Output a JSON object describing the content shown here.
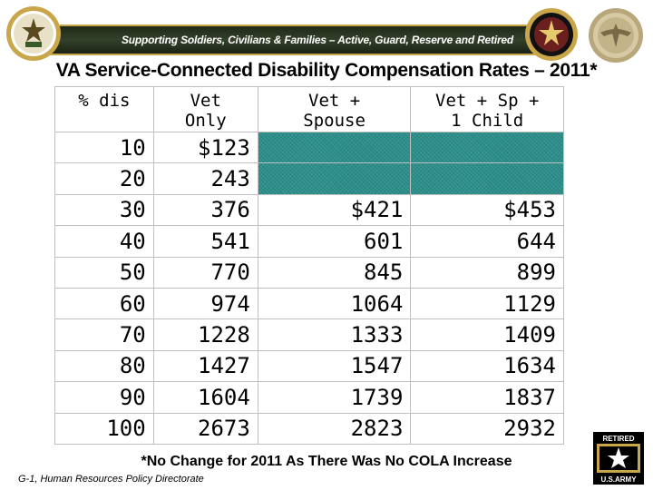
{
  "header": {
    "banner_text": "Supporting Soldiers, Civilians & Families – Active, Guard, Reserve and Retired",
    "seal_left_icon": "department-of-army-seal",
    "seal_right1_icon": "chief-of-staff-seal",
    "seal_right2_icon": "great-seal"
  },
  "title": "VA Service-Connected Disability Compensation Rates – 2011*",
  "table": {
    "headers": [
      "% dis",
      "Vet\nOnly",
      "Vet +\nSpouse",
      "Vet + Sp +\n1 Child"
    ],
    "rows": [
      [
        "10",
        "$123",
        "",
        ""
      ],
      [
        "20",
        "243",
        "",
        ""
      ],
      [
        "30",
        "376",
        "$421",
        "$453"
      ],
      [
        "40",
        "541",
        "601",
        "644"
      ],
      [
        "50",
        "770",
        "845",
        "899"
      ],
      [
        "60",
        "974",
        "1064",
        "1129"
      ],
      [
        "70",
        "1228",
        "1333",
        "1409"
      ],
      [
        "80",
        "1427",
        "1547",
        "1634"
      ],
      [
        "90",
        "1604",
        "1739",
        "1837"
      ],
      [
        "100",
        "2673",
        "2823",
        "2932"
      ]
    ],
    "na_fill_color": "#2a8f8a"
  },
  "footnote": "*No Change for 2011 As There Was No COLA Increase",
  "footer_left": "G-1, Human Resources Policy Directorate",
  "army_logo": {
    "top_text": "RETIRED",
    "bottom_text": "U.S.ARMY",
    "icon": "army-star-icon"
  },
  "colors": {
    "banner_bg": "#2b3722",
    "banner_border": "#c9a64a",
    "seal_gold": "#c9a64a"
  }
}
